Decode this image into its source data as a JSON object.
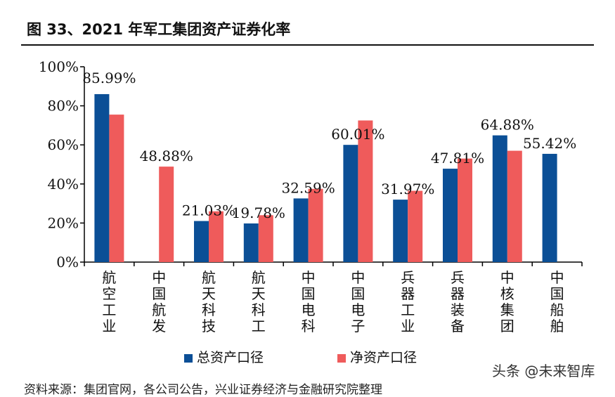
{
  "title": "图 33、2021 年军工集团资产证券化率",
  "source": "资料来源：集团官网，各公司公告，兴业证券经济与金融研究院整理",
  "watermark": "头条 @未来智库",
  "chart_data": {
    "type": "bar",
    "categories": [
      "航空工业",
      "中国航发",
      "航天科技",
      "航天科工",
      "中国电科",
      "中国电子",
      "兵器工业",
      "兵器装备",
      "中核集团",
      "中国船舶"
    ],
    "series": [
      {
        "name": "总资产口径",
        "color": "#0b4f96",
        "values": [
          85.99,
          null,
          21.03,
          19.78,
          32.59,
          60.01,
          31.97,
          47.81,
          64.88,
          55.42
        ]
      },
      {
        "name": "净资产口径",
        "color": "#ef5b5b",
        "values": [
          75.5,
          48.88,
          26.0,
          24.0,
          37.5,
          72.5,
          36.5,
          53.0,
          57.0,
          null
        ]
      }
    ],
    "data_labels": [
      "85.99%",
      "48.88%",
      "21.03%",
      "19.78%",
      "32.59%",
      "60.01%",
      "31.97%",
      "47.81%",
      "64.88%",
      "55.42%"
    ],
    "yticks": [
      "0%",
      "20%",
      "40%",
      "60%",
      "80%",
      "100%"
    ],
    "ylim": [
      0,
      100
    ],
    "legend_position": "bottom"
  }
}
